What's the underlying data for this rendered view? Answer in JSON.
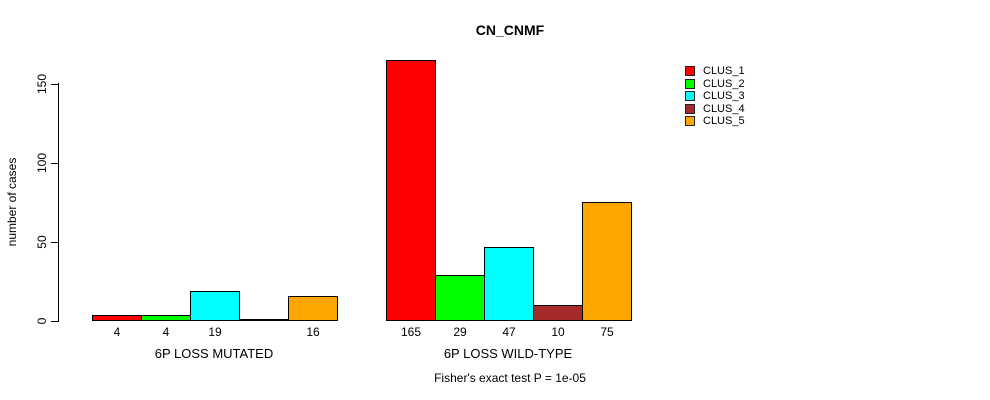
{
  "title": "CN_CNMF",
  "chart_data": {
    "type": "bar",
    "title": "CN_CNMF",
    "ylabel": "number of cases",
    "xlabel": "",
    "ylim": [
      0,
      150
    ],
    "y_axis_ticks": [
      0,
      50,
      100,
      150
    ],
    "grid": false,
    "legend_position": "top-right",
    "series": [
      {
        "name": "CLUS_1",
        "color": "#FF0000"
      },
      {
        "name": "CLUS_2",
        "color": "#00FF00"
      },
      {
        "name": "CLUS_3",
        "color": "#00FFFF"
      },
      {
        "name": "CLUS_4",
        "color": "#A52A2A"
      },
      {
        "name": "CLUS_5",
        "color": "#FFA500"
      }
    ],
    "groups": [
      {
        "label": "6P LOSS MUTATED",
        "values": [
          4,
          4,
          19,
          0,
          16
        ],
        "value_labels": [
          "4",
          "4",
          "19",
          "",
          "16"
        ]
      },
      {
        "label": "6P LOSS WILD-TYPE",
        "values": [
          165,
          29,
          47,
          10,
          75
        ],
        "value_labels": [
          "165",
          "29",
          "47",
          "10",
          "75"
        ]
      }
    ],
    "annotation": "Fisher's exact test P = 1e-05"
  }
}
